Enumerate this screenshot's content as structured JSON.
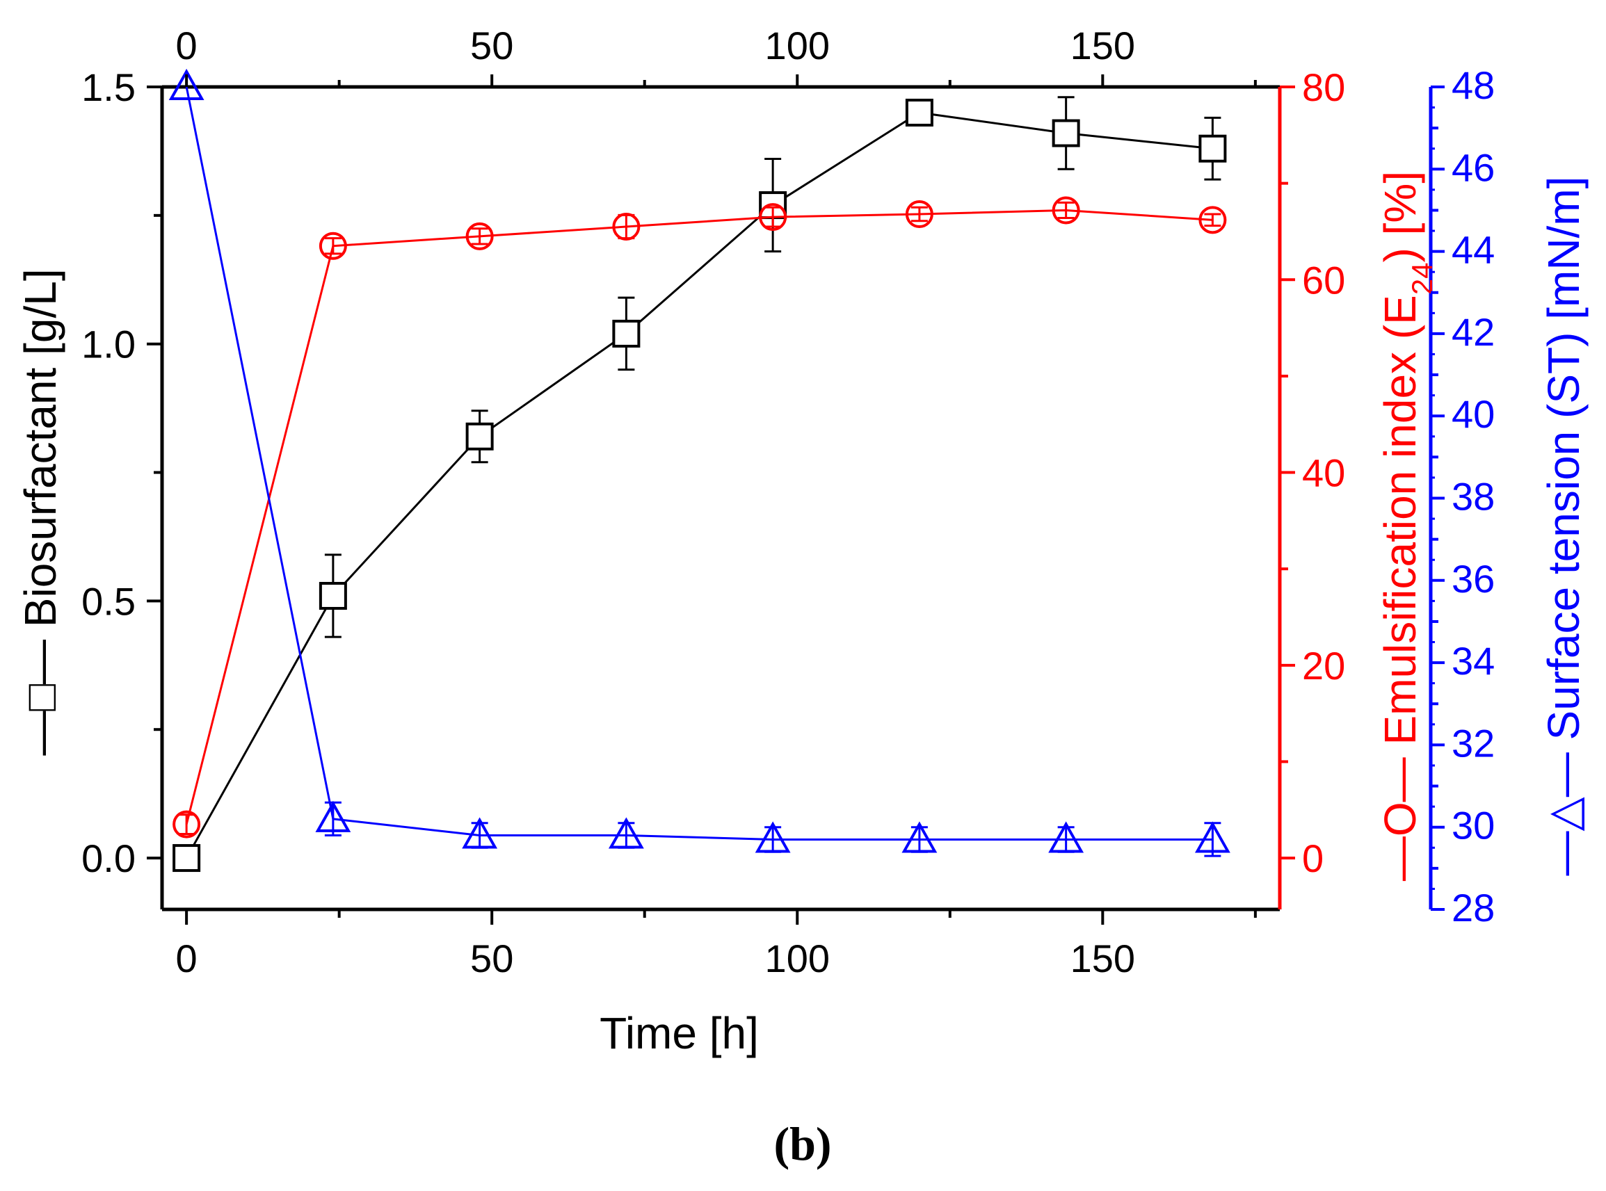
{
  "caption": "(b)",
  "colors": {
    "black": "#000000",
    "red": "#ff0000",
    "blue": "#0000ff"
  },
  "chart_data": {
    "type": "line",
    "x": [
      0,
      24,
      48,
      72,
      96,
      120,
      144,
      168
    ],
    "xlabel": "Time [h]",
    "xlim": [
      -4,
      179
    ],
    "xticks": [
      0,
      50,
      100,
      150
    ],
    "top_xticks": [
      0,
      50,
      100,
      150
    ],
    "series": [
      {
        "name": "Biosurfactant",
        "axis": "left",
        "marker": "square",
        "color": "#000000",
        "values": [
          0.0,
          0.51,
          0.82,
          1.02,
          1.27,
          1.45,
          1.41,
          1.38
        ],
        "errors": [
          0.01,
          0.08,
          0.05,
          0.07,
          0.09,
          0.01,
          0.07,
          0.06
        ]
      },
      {
        "name": "Emulsification index (E24)",
        "axis": "right1",
        "marker": "circle",
        "color": "#ff0000",
        "values": [
          3.5,
          63.5,
          64.5,
          65.5,
          66.5,
          66.8,
          67.2,
          66.2
        ],
        "errors": [
          1.0,
          0.8,
          0.8,
          1.2,
          1.0,
          0.7,
          0.8,
          0.6
        ]
      },
      {
        "name": "Surface tension (ST)",
        "axis": "right2",
        "marker": "triangle",
        "color": "#0000ff",
        "values": [
          48.0,
          30.2,
          29.8,
          29.8,
          29.7,
          29.7,
          29.7,
          29.7
        ],
        "errors": [
          0.0,
          0.4,
          0.3,
          0.3,
          0.3,
          0.3,
          0.3,
          0.4
        ]
      }
    ],
    "axes": {
      "left": {
        "label": "Biosurfactant [g/L]",
        "legend_symbol": "—□—",
        "ylim": [
          -0.1,
          1.5
        ],
        "ticks": [
          0.0,
          0.5,
          1.0,
          1.5
        ],
        "tick_labels": [
          "0.0",
          "0.5",
          "1.0",
          "1.5"
        ],
        "minor_ticks": [
          0.25,
          0.75,
          1.25
        ]
      },
      "right1": {
        "label_main": "Emulsification index (E",
        "label_sub": "24",
        "label_tail": ") [%]",
        "legend_symbol": "—O—",
        "ylim": [
          -5.33,
          80
        ],
        "ticks": [
          0,
          20,
          40,
          60,
          80
        ],
        "tick_labels": [
          "0",
          "20",
          "40",
          "60",
          "80"
        ],
        "minor_ticks": [
          10,
          30,
          50,
          70
        ]
      },
      "right2": {
        "label": "Surface tension (ST) [mN/m]",
        "legend_symbol": "—△—",
        "ylim": [
          28,
          48
        ],
        "ticks": [
          28,
          30,
          32,
          34,
          36,
          38,
          40,
          42,
          44,
          46,
          48
        ],
        "tick_labels": [
          "28",
          "30",
          "32",
          "34",
          "36",
          "38",
          "40",
          "42",
          "44",
          "46",
          "48"
        ]
      }
    }
  }
}
